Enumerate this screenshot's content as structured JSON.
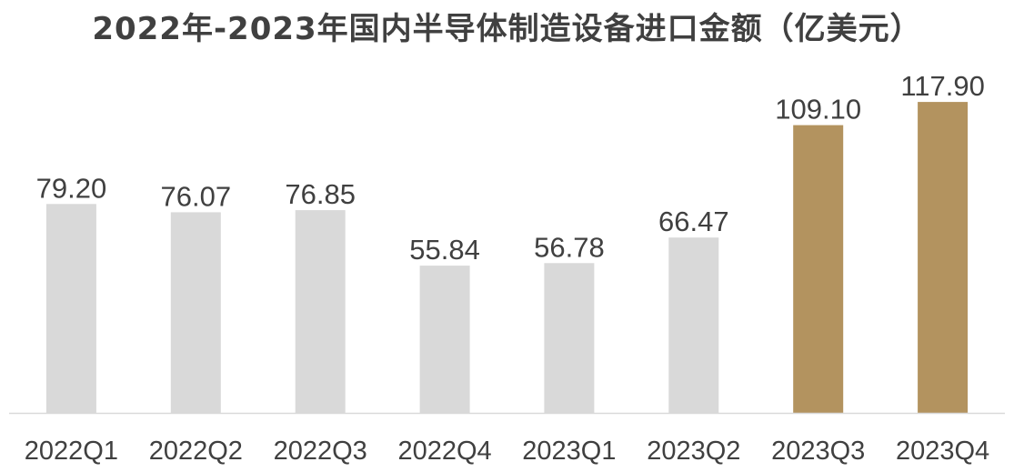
{
  "chart_data": {
    "type": "bar",
    "title": "2022年-2023年国内半导体制造设备进口金额（亿美元）",
    "xlabel": "",
    "ylabel": "",
    "categories": [
      "2022Q1",
      "2022Q2",
      "2022Q3",
      "2022Q4",
      "2023Q1",
      "2023Q2",
      "2023Q3",
      "2023Q4"
    ],
    "values": [
      79.2,
      76.07,
      76.85,
      55.84,
      56.78,
      66.47,
      109.1,
      117.9
    ],
    "value_labels": [
      "79.20",
      "76.07",
      "76.85",
      "55.84",
      "56.78",
      "66.47",
      "109.10",
      "117.90"
    ],
    "ylim": [
      0,
      120
    ],
    "grid": false,
    "legend": "none",
    "colors": {
      "default_bar": "#d9d9d9",
      "highlight_bar": "#b3935f",
      "axis": "#d9d9d9",
      "text": "#404040"
    },
    "highlighted_categories": [
      "2023Q3",
      "2023Q4"
    ]
  }
}
